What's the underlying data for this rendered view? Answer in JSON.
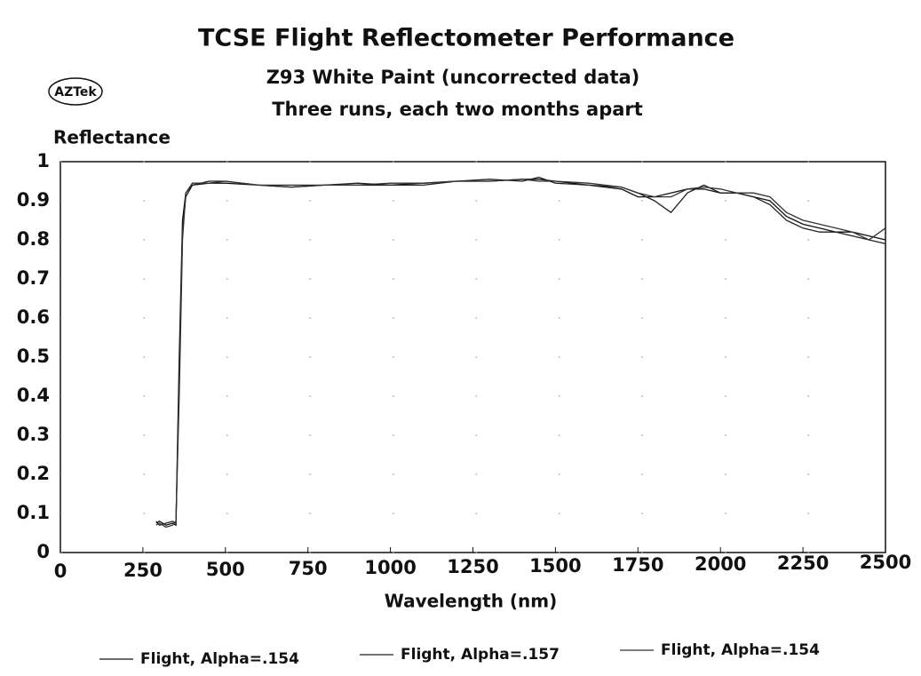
{
  "chart_data": {
    "type": "line",
    "title": "TCSE Flight Reflectometer Performance",
    "subtitle": [
      "Z93 White Paint (uncorrected data)",
      "Three runs, each two months apart"
    ],
    "logo": "AZTek",
    "y_label": "Reflectance",
    "x_label": "Wavelength (nm)",
    "xlim": [
      0,
      2500
    ],
    "xticks": [
      0,
      250,
      500,
      750,
      1000,
      1250,
      1500,
      1750,
      2000,
      2250,
      2500
    ],
    "ylim": [
      0,
      1
    ],
    "yticks": [
      0,
      0.1,
      0.2,
      0.3,
      0.4,
      0.5,
      0.6,
      0.7,
      0.8,
      0.9,
      1
    ],
    "grid": true,
    "legend": "bottom",
    "x": [
      290,
      300,
      320,
      340,
      350,
      360,
      370,
      380,
      400,
      450,
      500,
      600,
      700,
      800,
      900,
      1000,
      1100,
      1200,
      1300,
      1400,
      1450,
      1500,
      1600,
      1700,
      1750,
      1800,
      1850,
      1900,
      1950,
      2000,
      2050,
      2100,
      2150,
      2200,
      2250,
      2300,
      2350,
      2400,
      2450,
      2500
    ],
    "series": [
      {
        "name": "Flight, Alpha=.154",
        "color": "#111111",
        "values": [
          0.075,
          0.08,
          0.07,
          0.075,
          0.07,
          0.5,
          0.85,
          0.92,
          0.94,
          0.945,
          0.945,
          0.94,
          0.935,
          0.94,
          0.94,
          0.94,
          0.945,
          0.95,
          0.95,
          0.955,
          0.955,
          0.95,
          0.94,
          0.93,
          0.91,
          0.91,
          0.92,
          0.93,
          0.93,
          0.92,
          0.92,
          0.91,
          0.9,
          0.86,
          0.84,
          0.83,
          0.82,
          0.82,
          0.81,
          0.8
        ]
      },
      {
        "name": "Flight, Alpha=.157",
        "color": "#222222",
        "values": [
          0.08,
          0.07,
          0.075,
          0.08,
          0.075,
          0.45,
          0.82,
          0.91,
          0.94,
          0.95,
          0.95,
          0.94,
          0.935,
          0.94,
          0.945,
          0.94,
          0.94,
          0.95,
          0.955,
          0.95,
          0.96,
          0.945,
          0.94,
          0.935,
          0.92,
          0.9,
          0.87,
          0.92,
          0.94,
          0.92,
          0.92,
          0.91,
          0.89,
          0.85,
          0.83,
          0.82,
          0.82,
          0.81,
          0.8,
          0.79
        ]
      },
      {
        "name": "Flight, Alpha=.154",
        "color": "#333333",
        "values": [
          0.07,
          0.075,
          0.065,
          0.07,
          0.08,
          0.4,
          0.8,
          0.92,
          0.945,
          0.945,
          0.95,
          0.94,
          0.94,
          0.94,
          0.94,
          0.945,
          0.945,
          0.95,
          0.95,
          0.955,
          0.95,
          0.95,
          0.945,
          0.935,
          0.92,
          0.91,
          0.91,
          0.93,
          0.935,
          0.93,
          0.92,
          0.92,
          0.91,
          0.87,
          0.85,
          0.84,
          0.83,
          0.82,
          0.8,
          0.83
        ]
      }
    ]
  }
}
